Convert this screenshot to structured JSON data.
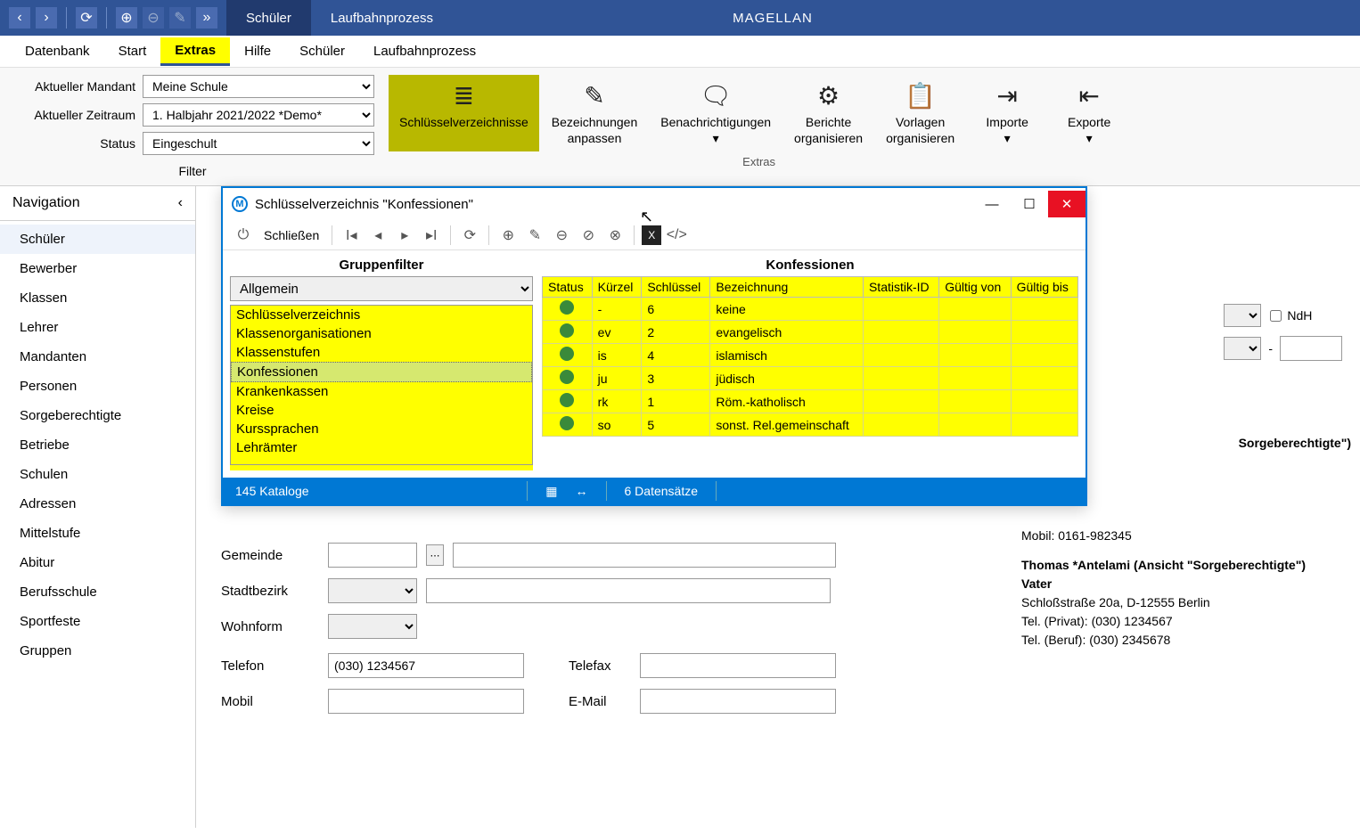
{
  "app": {
    "title": "MAGELLAN"
  },
  "topbar_tabs": {
    "active": "Schüler",
    "inactive": "Laufbahnprozess"
  },
  "menubar": {
    "items": [
      "Datenbank",
      "Start",
      "Extras",
      "Hilfe",
      "Schüler",
      "Laufbahnprozess"
    ],
    "highlighted_index": 2
  },
  "filter": {
    "mandant_label": "Aktueller Mandant",
    "mandant_value": "Meine Schule",
    "zeitraum_label": "Aktueller Zeitraum",
    "zeitraum_value": "1. Halbjahr 2021/2022 *Demo*",
    "status_label": "Status",
    "status_value": "Eingeschult",
    "group_label": "Filter"
  },
  "ribbon": {
    "buttons": [
      {
        "label": "Schlüsselverzeichnisse",
        "icon": "≣",
        "highlighted": true
      },
      {
        "label": "Bezeichnungen anpassen",
        "icon": "✎"
      },
      {
        "label": "Benachrichtigungen ▾",
        "icon": "🗨"
      },
      {
        "label": "Berichte organisieren",
        "icon": "⚙"
      },
      {
        "label": "Vorlagen organisieren",
        "icon": "📋"
      },
      {
        "label": "Importe ▾",
        "icon": "⇥"
      },
      {
        "label": "Exporte ▾",
        "icon": "⇤"
      }
    ],
    "group_label": "Extras"
  },
  "navigation": {
    "header": "Navigation",
    "items": [
      "Schüler",
      "Bewerber",
      "Klassen",
      "Lehrer",
      "Mandanten",
      "Personen",
      "Sorgeberechtigte",
      "Betriebe",
      "Schulen",
      "Adressen",
      "Mittelstufe",
      "Abitur",
      "Berufsschule",
      "Sportfeste",
      "Gruppen"
    ],
    "active_index": 0
  },
  "dialog": {
    "title": "Schlüsselverzeichnis \"Konfessionen\"",
    "close_label": "Schließen",
    "left_header": "Gruppenfilter",
    "combo_value": "Allgemein",
    "list_items": [
      "Schlüsselverzeichnis",
      "Klassenorganisationen",
      "Klassenstufen",
      "Konfessionen",
      "Krankenkassen",
      "Kreise",
      "Kurssprachen",
      "Lehrämter"
    ],
    "selected_index": 3,
    "right_header": "Konfessionen",
    "columns": [
      "Status",
      "Kürzel",
      "Schlüssel",
      "Bezeichnung",
      "Statistik-ID",
      "Gültig von",
      "Gültig bis"
    ],
    "rows": [
      {
        "kuerzel": "-",
        "schluessel": "6",
        "bezeichnung": "keine"
      },
      {
        "kuerzel": "ev",
        "schluessel": "2",
        "bezeichnung": "evangelisch"
      },
      {
        "kuerzel": "is",
        "schluessel": "4",
        "bezeichnung": "islamisch"
      },
      {
        "kuerzel": "ju",
        "schluessel": "3",
        "bezeichnung": "jüdisch"
      },
      {
        "kuerzel": "rk",
        "schluessel": "1",
        "bezeichnung": "Röm.-katholisch"
      },
      {
        "kuerzel": "so",
        "schluessel": "5",
        "bezeichnung": "sonst. Rel.gemeinschaft"
      }
    ],
    "status_left": "145 Kataloge",
    "status_right": "6 Datensätze"
  },
  "bg_form": {
    "gemeinde": "Gemeinde",
    "stadtbezirk": "Stadtbezirk",
    "wohnform": "Wohnform",
    "telefon": "Telefon",
    "telefon_value": "(030) 1234567",
    "telefax": "Telefax",
    "mobil": "Mobil",
    "email": "E-Mail"
  },
  "right_side": {
    "mobil_line": "Mobil: 0161-982345",
    "name_line": "Thomas *Antelami (Ansicht \"Sorgeberechtigte\")",
    "role": "Vater",
    "addr": "Schloßstraße 20a, D-12555 Berlin",
    "tel_privat": "Tel. (Privat): (030) 1234567",
    "tel_beruf": "Tel. (Beruf): (030) 2345678",
    "extra1": "Sorgeberechtigte\")",
    "ndh": "NdH",
    "dash": "-"
  }
}
